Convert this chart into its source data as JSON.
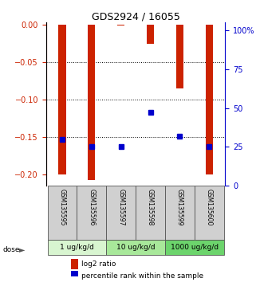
{
  "title": "GDS2924 / 16055",
  "samples": [
    "GSM135595",
    "GSM135596",
    "GSM135597",
    "GSM135598",
    "GSM135599",
    "GSM135600"
  ],
  "log2_ratios": [
    -0.2,
    -0.207,
    -0.001,
    -0.025,
    -0.085,
    -0.2
  ],
  "percentile_ranks": [
    30,
    25,
    25,
    47,
    32,
    25
  ],
  "dose_groups": [
    {
      "label": "1 ug/kg/d",
      "indices": [
        0,
        1
      ]
    },
    {
      "label": "10 ug/kg/d",
      "indices": [
        2,
        3
      ]
    },
    {
      "label": "1000 ug/kg/d",
      "indices": [
        4,
        5
      ]
    }
  ],
  "dose_colors": [
    "#d8f5d0",
    "#a8e89a",
    "#6cd46c"
  ],
  "ylim_left": [
    -0.215,
    0.003
  ],
  "ylim_right": [
    0,
    105
  ],
  "left_yticks": [
    0,
    -0.05,
    -0.1,
    -0.15,
    -0.2
  ],
  "right_yticks": [
    0,
    25,
    50,
    75,
    100
  ],
  "bar_color": "#cc2200",
  "marker_color": "#0000cc",
  "bar_width": 0.25,
  "sample_bg_color": "#d0d0d0",
  "left_axis_color": "#cc2200",
  "right_axis_color": "#0000cc",
  "legend_bar_label": "log2 ratio",
  "legend_marker_label": "percentile rank within the sample",
  "grid_linestyle": ":",
  "grid_color": "black",
  "grid_linewidth": 0.7
}
